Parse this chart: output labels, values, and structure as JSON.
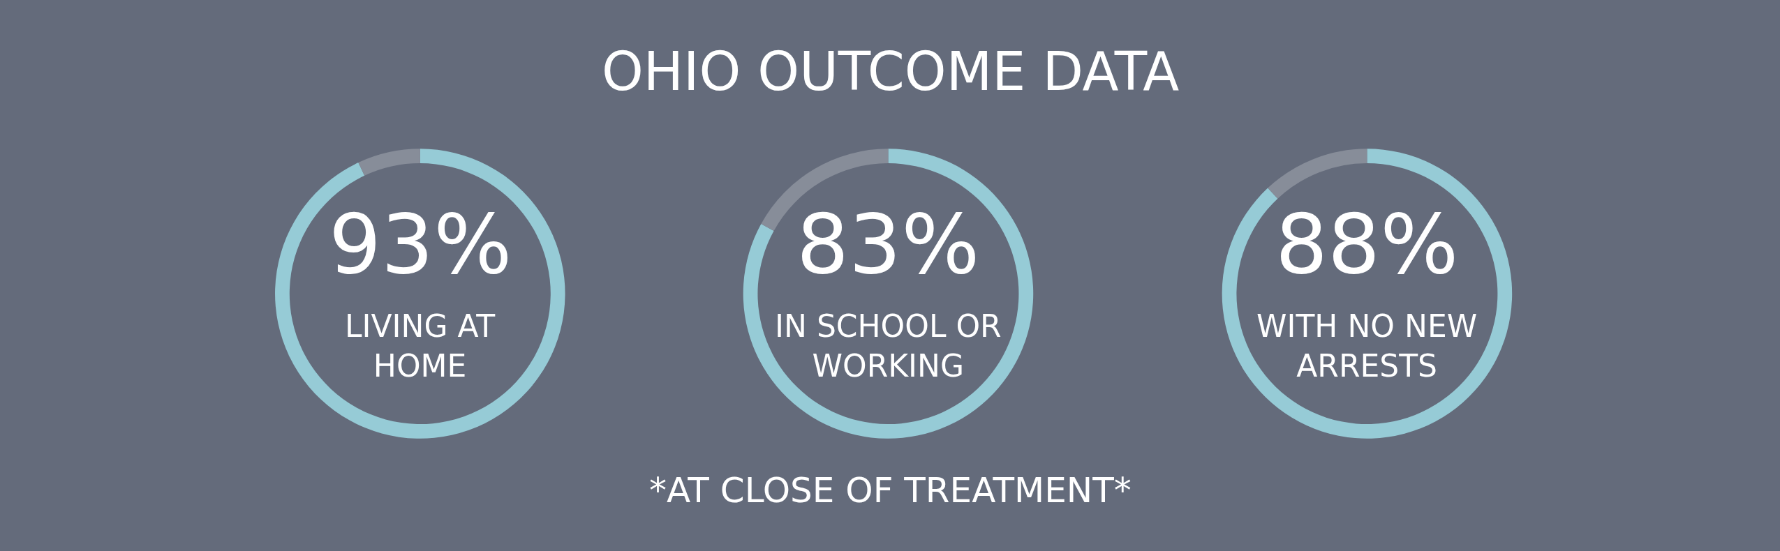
{
  "chart_data": [
    {
      "type": "other",
      "title": "OHIO OUTCOME DATA",
      "annotations": [
        "*AT CLOSE OF TREATMENT*"
      ]
    },
    {
      "type": "donut",
      "categories": [
        null,
        null
      ],
      "values": [
        93,
        7
      ],
      "colors": [
        "#96cbd6",
        "#878d99"
      ],
      "value_labels": [
        "93%",
        null
      ],
      "annotations": [
        "LIVING AT\nHOME"
      ]
    },
    {
      "type": "donut",
      "categories": [
        null,
        null
      ],
      "values": [
        83,
        17
      ],
      "colors": [
        "#96cbd6",
        "#878d99"
      ],
      "value_labels": [
        "83%",
        null
      ],
      "annotations": [
        "IN SCHOOL OR\nWORKING"
      ]
    },
    {
      "type": "donut",
      "categories": [
        null,
        null
      ],
      "values": [
        88,
        12
      ],
      "colors": [
        "#96cbd6",
        "#878d99"
      ],
      "value_labels": [
        "88%",
        null
      ],
      "annotations": [
        "WITH NO NEW\nARRESTS"
      ]
    }
  ]
}
